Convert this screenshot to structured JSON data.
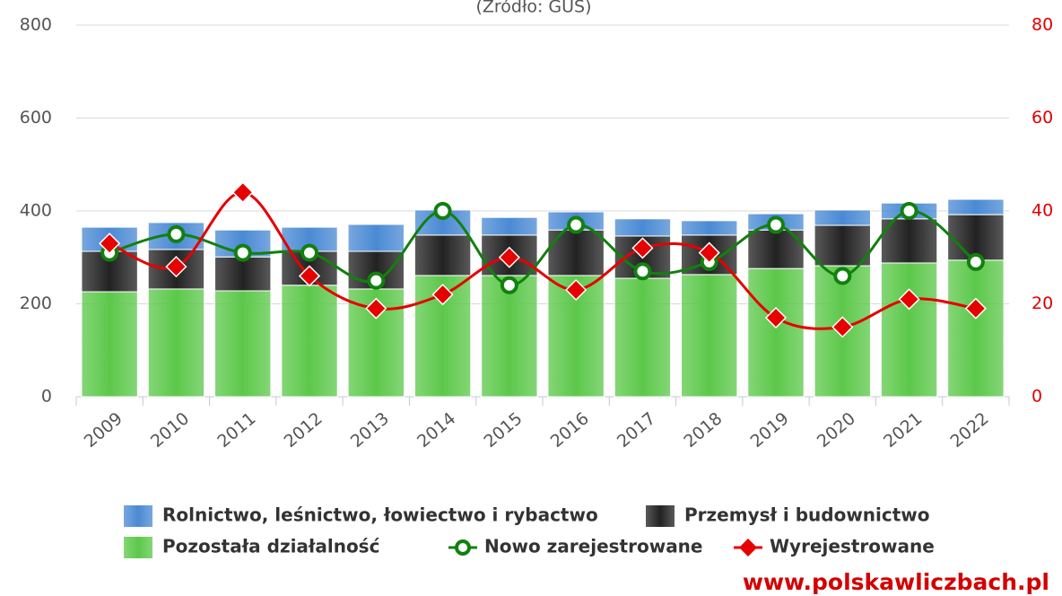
{
  "chart_data": {
    "type": "bar",
    "subtitle": "(Źródło: GUS)",
    "categories": [
      "2009",
      "2010",
      "2011",
      "2012",
      "2013",
      "2014",
      "2015",
      "2016",
      "2017",
      "2018",
      "2019",
      "2020",
      "2021",
      "2022"
    ],
    "series": [
      {
        "name": "Rolnictwo, leśnictwo, łowiectwo i rybactwo",
        "type": "bar",
        "color": "#4a8ad4",
        "values": [
          52,
          58,
          58,
          52,
          58,
          54,
          38,
          39,
          37,
          31,
          35,
          33,
          34,
          33
        ]
      },
      {
        "name": "Przemysł i budownictwo",
        "type": "bar",
        "color": "#222222",
        "values": [
          87,
          85,
          73,
          73,
          81,
          87,
          87,
          98,
          91,
          85,
          83,
          87,
          95,
          98
        ]
      },
      {
        "name": "Pozostała działalność",
        "type": "bar",
        "color": "#5cc84a",
        "values": [
          226,
          232,
          228,
          240,
          232,
          261,
          261,
          261,
          255,
          263,
          276,
          282,
          288,
          294
        ]
      },
      {
        "name": "Nowo zarejestrowane",
        "type": "line",
        "axis": "y2",
        "color": "#12800f",
        "values": [
          31,
          35,
          31,
          31,
          25,
          40,
          24,
          37,
          27,
          29,
          37,
          26,
          40,
          29
        ]
      },
      {
        "name": "Wyrejestrowane",
        "type": "line",
        "axis": "y2",
        "color": "#e60000",
        "values": [
          33,
          28,
          44,
          26,
          19,
          22,
          30,
          23,
          32,
          31,
          17,
          15,
          21,
          19
        ]
      }
    ],
    "ylim": [
      0,
      800
    ],
    "yticks": [
      0,
      200,
      400,
      600,
      800
    ],
    "y2lim": [
      0,
      80
    ],
    "y2ticks": [
      0,
      20,
      40,
      60,
      80
    ],
    "grid": true,
    "legend": "bottom",
    "footer": "www.polskawliczbach.pl"
  }
}
